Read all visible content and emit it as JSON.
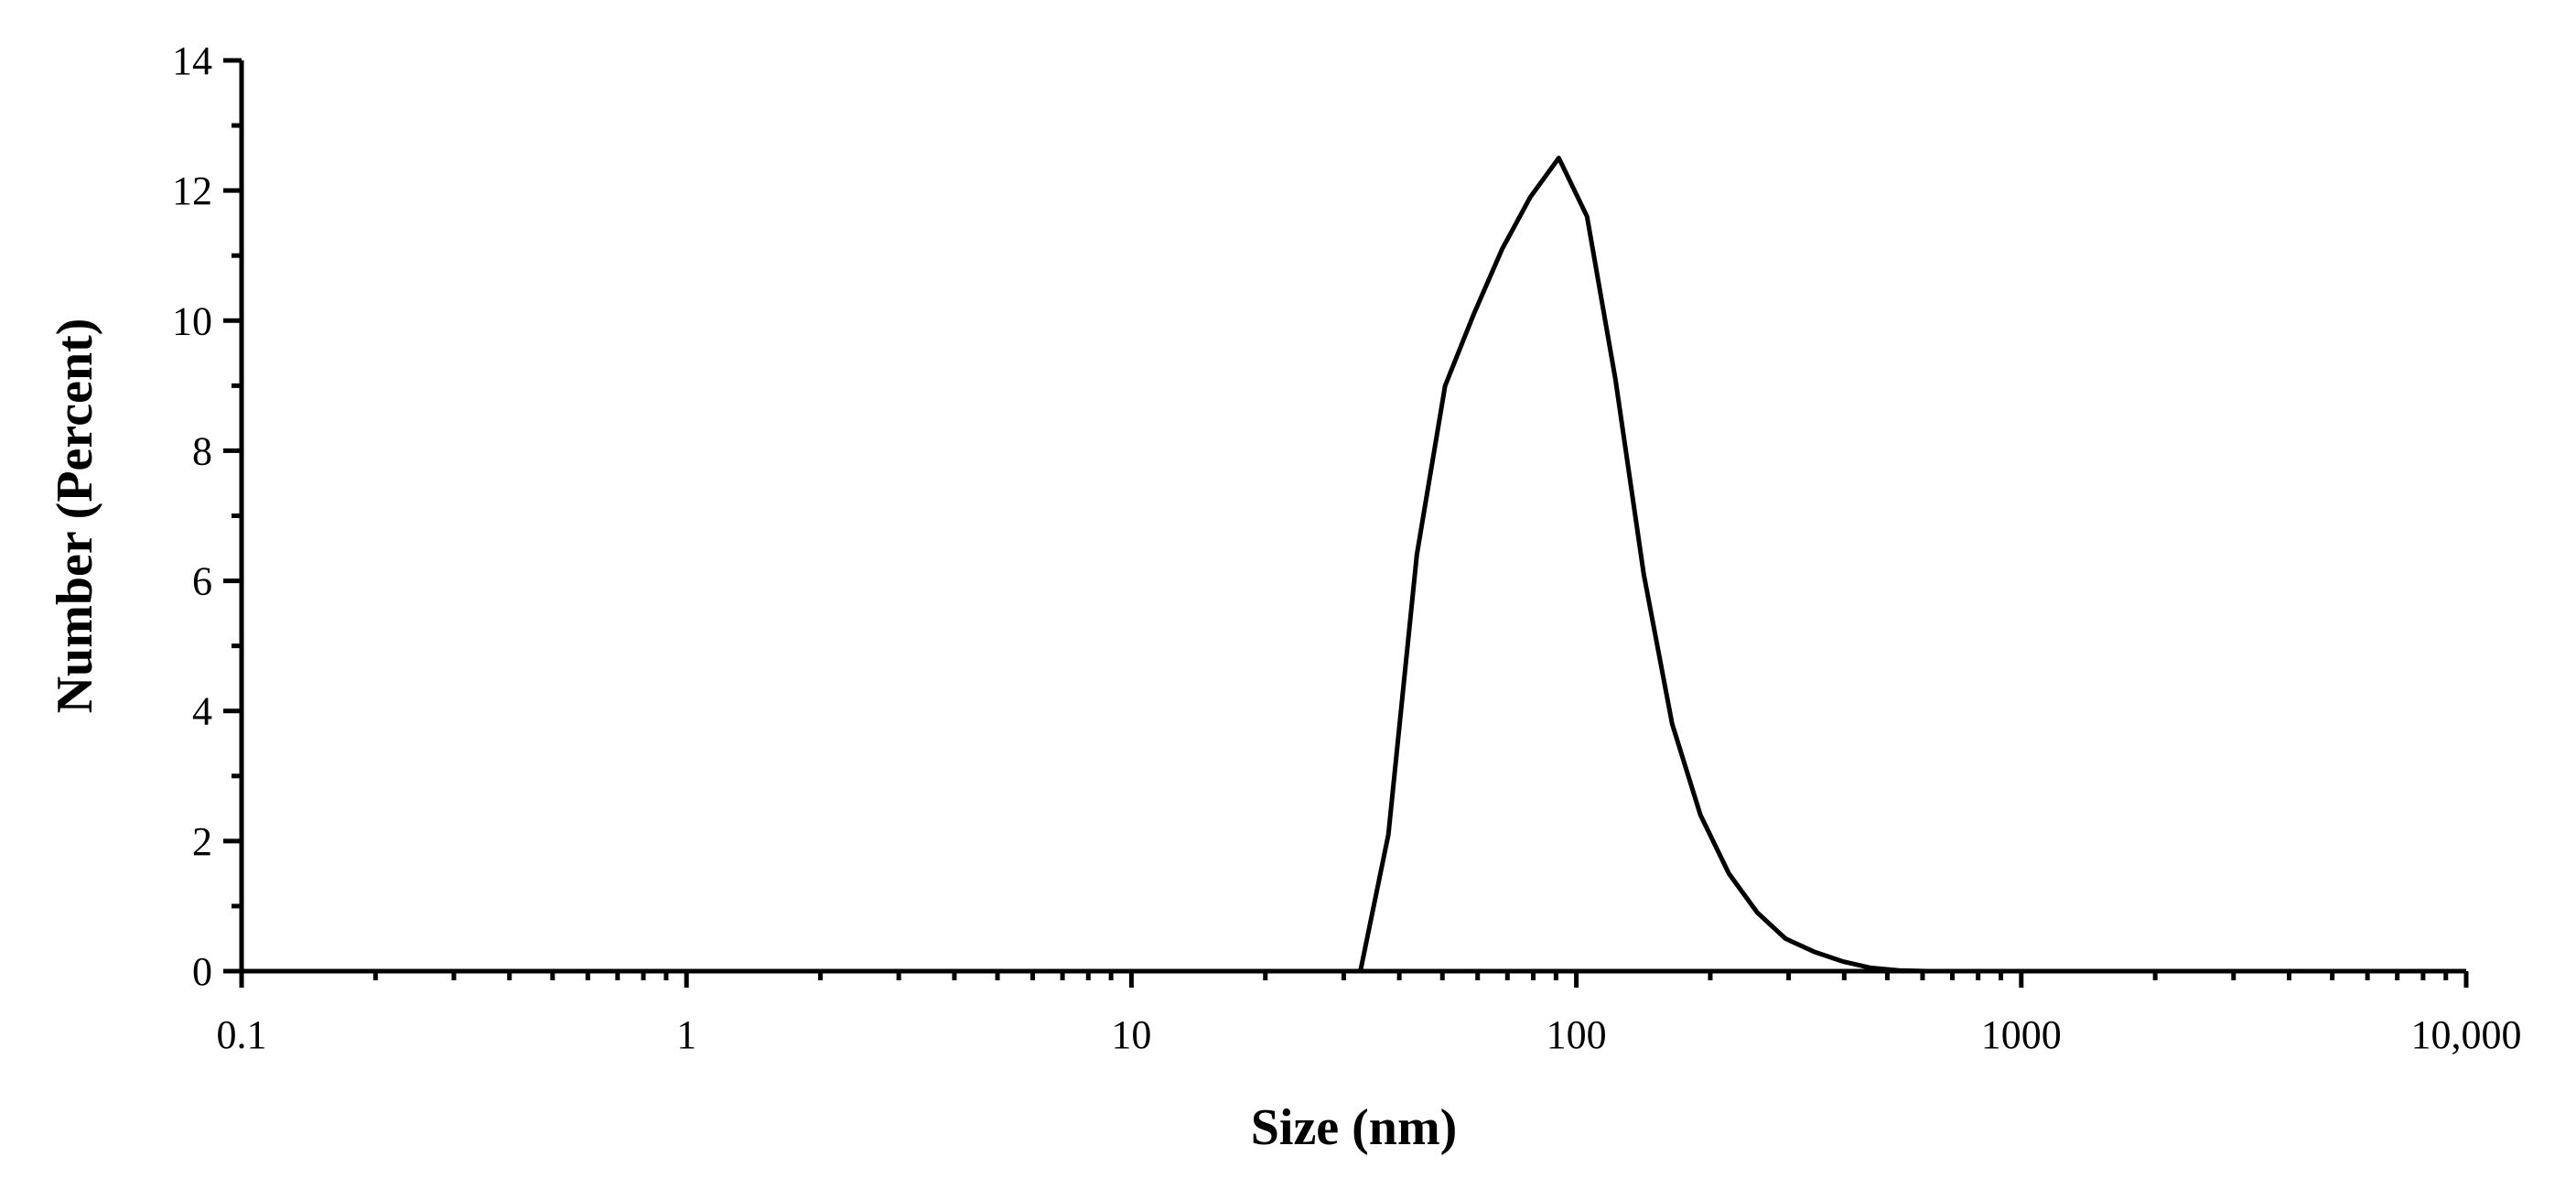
{
  "chart_data": {
    "type": "line",
    "title": "",
    "xlabel": "Size (nm)",
    "ylabel": "Number (Percent)",
    "x_scale": "log",
    "xlim": [
      0.1,
      10000
    ],
    "ylim": [
      0,
      14
    ],
    "x_ticks": [
      {
        "value": 0.1,
        "label": "0.1"
      },
      {
        "value": 1,
        "label": "1"
      },
      {
        "value": 10,
        "label": "10"
      },
      {
        "value": 100,
        "label": "100"
      },
      {
        "value": 1000,
        "label": "1000"
      },
      {
        "value": 10000,
        "label": "10,000"
      }
    ],
    "y_ticks": [
      {
        "value": 0,
        "label": "0"
      },
      {
        "value": 2,
        "label": "2"
      },
      {
        "value": 4,
        "label": "4"
      },
      {
        "value": 6,
        "label": "6"
      },
      {
        "value": 8,
        "label": "8"
      },
      {
        "value": 10,
        "label": "10"
      },
      {
        "value": 12,
        "label": "12"
      },
      {
        "value": 14,
        "label": "14"
      }
    ],
    "grid": false,
    "legend": "none",
    "series": [
      {
        "color": "#000000",
        "x": [
          0.1,
          32.7,
          37.8,
          43.8,
          50.7,
          58.8,
          68.1,
          78.8,
          91.3,
          105.7,
          122.4,
          141.8,
          164.2,
          190.1,
          220.2,
          255.0,
          295.3,
          342.0,
          396.1,
          458.7,
          531.2,
          615.1,
          10000
        ],
        "y": [
          0,
          0,
          2.1,
          6.4,
          9.0,
          10.1,
          11.1,
          11.9,
          12.5,
          11.6,
          9.1,
          6.1,
          3.8,
          2.4,
          1.5,
          0.9,
          0.5,
          0.3,
          0.15,
          0.05,
          0.01,
          0,
          0
        ]
      }
    ]
  }
}
